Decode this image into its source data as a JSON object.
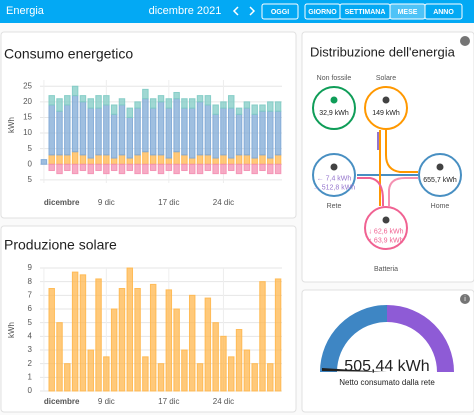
{
  "header": {
    "title": "Energia",
    "period": "dicembre 2021",
    "buttons": [
      "OGGI",
      "GIORNO",
      "SETTIMANA",
      "MESE",
      "ANNO"
    ]
  },
  "chart_data": [
    {
      "type": "bar",
      "stacked": true,
      "title": "Consumo energetico",
      "ylabel": "kWh",
      "categories": [
        "dicembre",
        null,
        null,
        null,
        null,
        null,
        null,
        null,
        "9 dic",
        null,
        null,
        null,
        null,
        null,
        null,
        null,
        "17 dic",
        null,
        null,
        null,
        null,
        null,
        null,
        "24 dic",
        null,
        null,
        null,
        null,
        null,
        null,
        null
      ],
      "series": [
        {
          "color": "#ffb74d",
          "values": [
            0,
            3,
            3,
            3,
            4,
            3,
            2,
            3,
            3,
            2,
            3,
            2,
            3,
            4,
            3,
            3,
            2,
            4,
            3,
            2,
            3,
            3,
            2,
            3,
            2,
            3,
            3,
            2,
            3,
            2,
            3
          ]
        },
        {
          "color": "#7fa9d6",
          "values": [
            1.5,
            16,
            14,
            16,
            18,
            17,
            16,
            15,
            16,
            14,
            16,
            13,
            15,
            17,
            15,
            17,
            16,
            17,
            15,
            16,
            17,
            16,
            14,
            15,
            16,
            13,
            15,
            14,
            14,
            15,
            14
          ]
        },
        {
          "color": "#80cbc4",
          "values": [
            0,
            3,
            4,
            3,
            3,
            2,
            3,
            4,
            3,
            3,
            2,
            3,
            2,
            3,
            3,
            2,
            3,
            2,
            3,
            3,
            2,
            3,
            3,
            2,
            4,
            2,
            2,
            3,
            2,
            3,
            3
          ]
        },
        {
          "color": "#f48fb1",
          "values": [
            0,
            -2,
            -3,
            -2,
            -3,
            -2,
            -3,
            -2,
            -3,
            -2,
            -3,
            -2,
            -3,
            -3,
            -2,
            -3,
            -2,
            -3,
            -2,
            -3,
            -3,
            -2,
            -3,
            -3,
            -2,
            -3,
            -2,
            -3,
            -2,
            -3,
            -3
          ]
        }
      ],
      "ylim": [
        -6,
        27
      ],
      "yticks": [
        25,
        20,
        15,
        10,
        5,
        0,
        {
          "value": -5,
          "label": "5"
        }
      ],
      "grid": true
    },
    {
      "type": "bar",
      "title": "Produzione solare",
      "ylabel": "kWh",
      "color": "#ffb74d",
      "categories": [
        "dicembre",
        null,
        null,
        null,
        null,
        null,
        null,
        null,
        "9 dic",
        null,
        null,
        null,
        null,
        null,
        null,
        null,
        "17 dic",
        null,
        null,
        null,
        null,
        null,
        null,
        "24 dic",
        null,
        null,
        null,
        null,
        null,
        null,
        null
      ],
      "values": [
        0,
        7.5,
        5,
        2,
        8.7,
        8.5,
        3,
        8.2,
        2.5,
        6,
        7.5,
        9,
        7.5,
        2.5,
        7.8,
        2,
        7.4,
        6,
        3,
        7,
        2,
        6.8,
        5,
        4,
        2.5,
        4.5,
        3,
        2,
        8,
        2,
        8.2
      ],
      "ylim": [
        0,
        9
      ],
      "yticks": [
        0,
        1,
        2,
        3,
        4,
        5,
        6,
        7,
        8,
        9
      ],
      "grid": true
    }
  ],
  "distribution": {
    "title": "Distribuzione dell'energia",
    "nodes": [
      {
        "label": "Non fossile",
        "values": [
          "32,9 kWh"
        ]
      },
      {
        "label": "Solare",
        "values": [
          "149 kWh"
        ]
      },
      {
        "label": "Rete",
        "values": [
          "← 7,4 kWh",
          "→ 512,8 kWh"
        ]
      },
      {
        "label": "Home",
        "values": [
          "655,7 kWh"
        ]
      },
      {
        "label": "Batteria",
        "values": [
          "↓ 62,6 kWh",
          "↑ 63,9 kWh"
        ]
      }
    ]
  },
  "gauge": {
    "value_text": "505,44 kWh",
    "label": "Netto consumato dalla rete"
  }
}
